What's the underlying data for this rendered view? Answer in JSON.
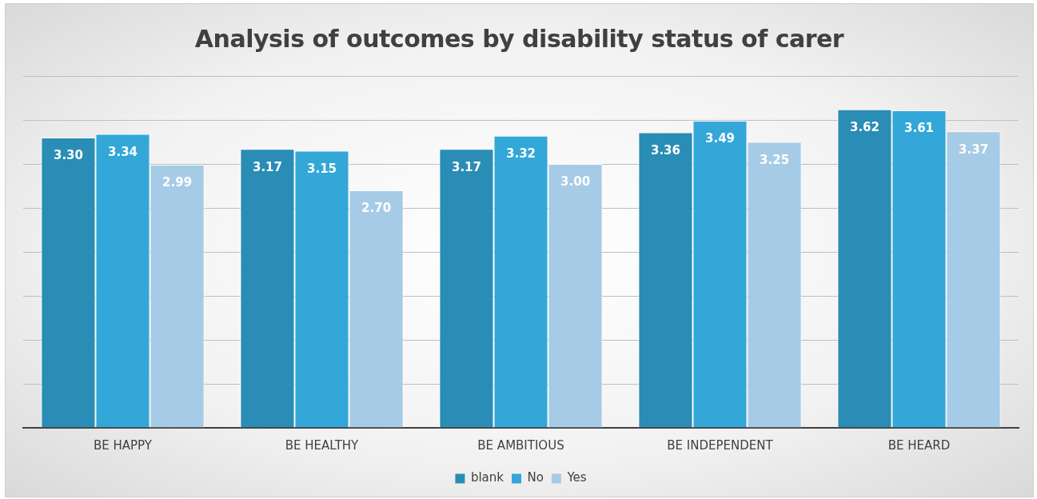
{
  "chart_data": {
    "type": "bar",
    "title": "Analysis of outcomes by disability status of carer",
    "categories": [
      "BE HAPPY",
      "BE HEALTHY",
      "BE AMBITIOUS",
      "BE INDEPENDENT",
      "BE HEARD"
    ],
    "series": [
      {
        "name": "blank",
        "color": "#2a8db5",
        "values": [
          3.3,
          3.17,
          3.17,
          3.36,
          3.62
        ],
        "value_labels": [
          "3.30",
          "3.17",
          "3.17",
          "3.36",
          "3.62"
        ]
      },
      {
        "name": "No",
        "color": "#33a7d8",
        "values": [
          3.34,
          3.15,
          3.32,
          3.49,
          3.61
        ],
        "value_labels": [
          "3.34",
          "3.15",
          "3.32",
          "3.49",
          "3.61"
        ]
      },
      {
        "name": "Yes",
        "color": "#a6cbe6",
        "values": [
          2.99,
          2.7,
          3.0,
          3.25,
          3.37
        ],
        "value_labels": [
          "2.99",
          "2.70",
          "3.00",
          "3.25",
          "3.37"
        ]
      }
    ],
    "ylim": [
      0,
      4
    ],
    "yticks": [
      {
        "value": 0,
        "label": null
      },
      {
        "value": 0.5,
        "label": null
      },
      {
        "value": 1,
        "label": null
      },
      {
        "value": 1.5,
        "label": null
      },
      {
        "value": 2,
        "label": null
      },
      {
        "value": 2.5,
        "label": null
      },
      {
        "value": 3,
        "label": null
      },
      {
        "value": 3.5,
        "label": null
      },
      {
        "value": 4,
        "label": null
      }
    ],
    "tick_labels": "x",
    "grid": "y",
    "legend": "bottom"
  }
}
